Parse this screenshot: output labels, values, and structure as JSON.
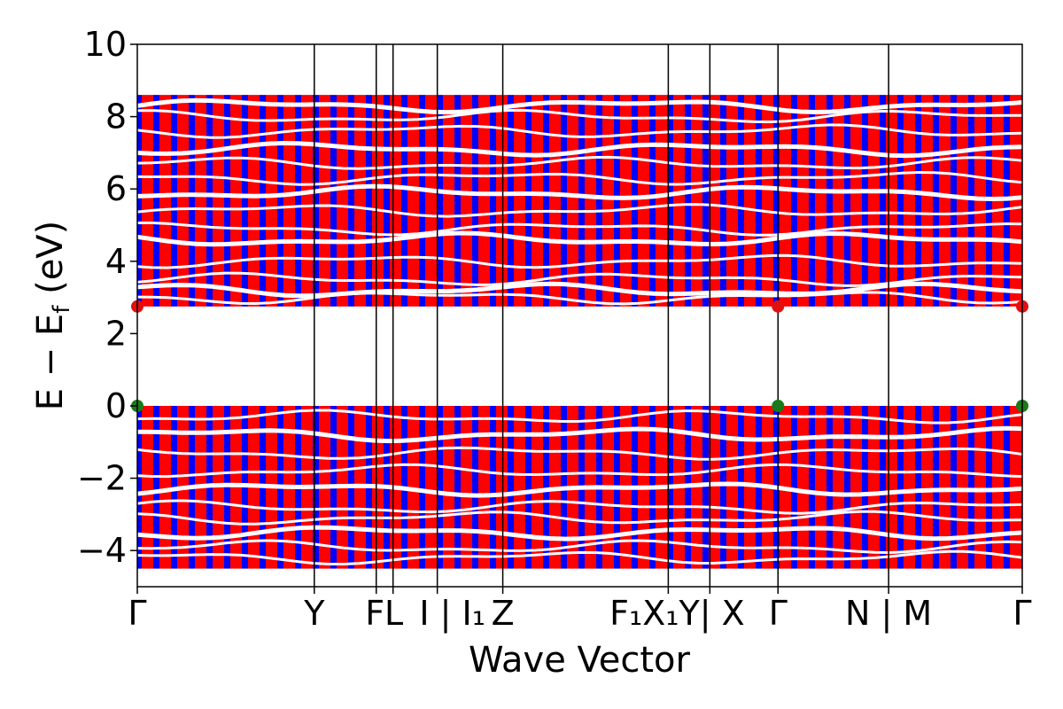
{
  "chart_data": {
    "type": "line",
    "title": "",
    "xlabel": "Wave Vector",
    "ylabel": "E − E",
    "ylabel_subscript": "f",
    "ylabel_unit": " (eV)",
    "ylim": [
      -5,
      10
    ],
    "yticks": [
      -4,
      -2,
      0,
      2,
      4,
      6,
      8,
      10
    ],
    "ytick_labels": [
      "−4",
      "−2",
      "0",
      "2",
      "4",
      "6",
      "8",
      "10"
    ],
    "x_range": [
      0,
      1
    ],
    "kpath": [
      {
        "x": 0.0,
        "label": "Γ"
      },
      {
        "x": 0.2,
        "label": "Y"
      },
      {
        "x": 0.27,
        "label": "F"
      },
      {
        "x": 0.289,
        "label": "L"
      },
      {
        "x": 0.339,
        "label": "I | I₁"
      },
      {
        "x": 0.413,
        "label": "Z"
      },
      {
        "x": 0.6,
        "label": "F₁ | X₁"
      },
      {
        "x": 0.647,
        "label": "Y | X"
      },
      {
        "x": 0.724,
        "label": "Γ"
      },
      {
        "x": 0.849,
        "label": "N | M"
      },
      {
        "x": 1.0,
        "label": "Γ"
      }
    ],
    "kpath_tick_labels": [
      "Γ",
      "Y",
      "FL",
      "I | I₁",
      "Z",
      "F₁X₁Y| X",
      "Γ",
      "N | M",
      "Γ"
    ],
    "valence_band": {
      "top": 0.0,
      "bottom": -4.5
    },
    "conduction_band": {
      "bottom": 2.75,
      "top": 8.6
    },
    "band_gap_eV": 2.75,
    "band_markers": [
      {
        "x": 0.0,
        "y": 0.0,
        "type": "VBM",
        "color": "#1a7a1a"
      },
      {
        "x": 0.724,
        "y": 0.0,
        "type": "VBM",
        "color": "#1a7a1a"
      },
      {
        "x": 1.0,
        "y": 0.0,
        "type": "VBM",
        "color": "#1a7a1a"
      },
      {
        "x": 0.0,
        "y": 2.75,
        "type": "CBM",
        "color": "#e01010"
      },
      {
        "x": 0.724,
        "y": 2.75,
        "type": "CBM",
        "color": "#e01010"
      },
      {
        "x": 1.0,
        "y": 2.75,
        "type": "CBM",
        "color": "#e01010"
      }
    ],
    "projection_colors": [
      "#ff0000",
      "#0000ff"
    ],
    "grid": false,
    "legend": "none"
  }
}
